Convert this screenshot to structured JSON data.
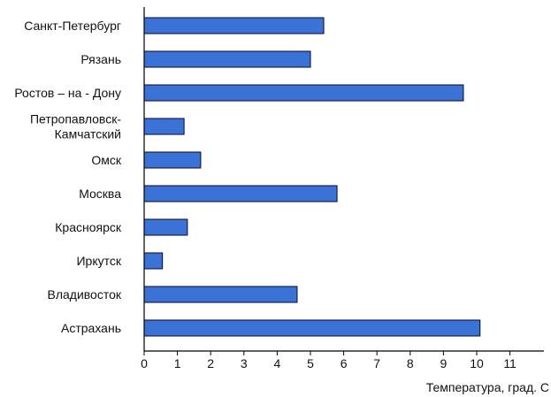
{
  "chart_data": {
    "type": "bar",
    "orientation": "horizontal",
    "title": "",
    "xlabel": "Температура, град. С",
    "ylabel": "",
    "xlim": [
      0,
      11.7
    ],
    "x_ticks": [
      0,
      1,
      2,
      3,
      4,
      5,
      6,
      7,
      8,
      9,
      10,
      11
    ],
    "grid": false,
    "legend": "none",
    "bar_color": "#3a72d6",
    "bar_edge_color": "#0a0a2a",
    "categories": [
      [
        "Санкт-Петербург"
      ],
      [
        "Рязань"
      ],
      [
        "Ростов – на - Дону"
      ],
      [
        "Петропавловск-",
        "Камчатский"
      ],
      [
        "Омск"
      ],
      [
        "Москва"
      ],
      [
        "Красноярск"
      ],
      [
        "Иркутск"
      ],
      [
        "Владивосток"
      ],
      [
        "Астрахань"
      ]
    ],
    "values": [
      5.4,
      5.0,
      9.6,
      1.2,
      1.7,
      5.8,
      1.3,
      0.55,
      4.6,
      10.1
    ]
  }
}
